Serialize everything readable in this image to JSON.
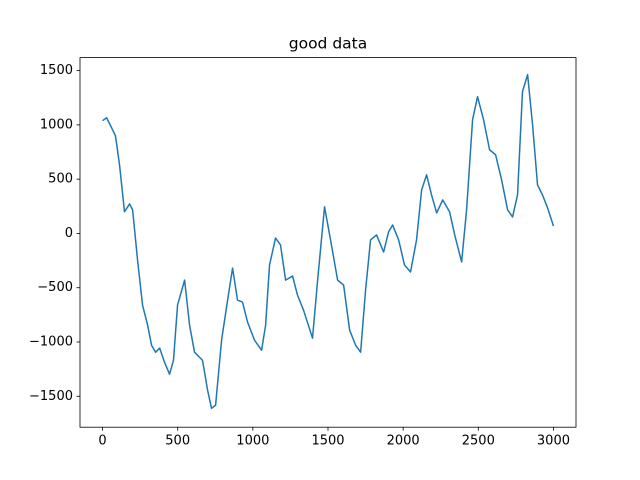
{
  "chart_data": {
    "type": "line",
    "title": "good data",
    "x": [
      0,
      27,
      60,
      86,
      113,
      146,
      180,
      200,
      233,
      266,
      300,
      326,
      353,
      380,
      412,
      446,
      472,
      499,
      546,
      579,
      612,
      665,
      699,
      725,
      752,
      792,
      832,
      865,
      898,
      931,
      965,
      1011,
      1058,
      1085,
      1111,
      1151,
      1184,
      1218,
      1264,
      1297,
      1337,
      1397,
      1431,
      1477,
      1517,
      1564,
      1604,
      1644,
      1684,
      1717,
      1750,
      1783,
      1823,
      1870,
      1903,
      1930,
      1970,
      2009,
      2049,
      2089,
      2123,
      2156,
      2189,
      2223,
      2263,
      2309,
      2343,
      2389,
      2422,
      2462,
      2495,
      2535,
      2575,
      2615,
      2655,
      2695,
      2728,
      2761,
      2794,
      2828,
      2861,
      2894,
      2927,
      2961,
      3000
    ],
    "series": [
      {
        "color": "#1f77b4",
        "values": [
          1039,
          1066,
          974,
          900,
          632,
          200,
          272,
          217,
          -245,
          -660,
          -845,
          -1030,
          -1094,
          -1057,
          -1186,
          -1297,
          -1168,
          -660,
          -430,
          -845,
          -1094,
          -1168,
          -1445,
          -1611,
          -1583,
          -983,
          -614,
          -319,
          -614,
          -632,
          -817,
          -983,
          -1076,
          -845,
          -291,
          -42,
          -106,
          -430,
          -392,
          -568,
          -706,
          -965,
          -430,
          245,
          -60,
          -430,
          -476,
          -891,
          -1030,
          -1094,
          -522,
          -60,
          -14,
          -171,
          14,
          78,
          -60,
          -291,
          -355,
          -60,
          402,
          540,
          355,
          189,
          309,
          199,
          -14,
          -263,
          217,
          1048,
          1260,
          1048,
          771,
          725,
          494,
          217,
          152,
          355,
          1307,
          1463,
          1002,
          448,
          355,
          235,
          69
        ]
      }
    ],
    "xlim": [
      -150,
      3150
    ],
    "ylim": [
      -1785,
      1620
    ],
    "xticks": [
      0,
      500,
      1000,
      1500,
      2000,
      2500,
      3000
    ],
    "yticks": [
      {
        "value": -1500,
        "label": "−1500"
      },
      {
        "value": -1000,
        "label": "−1000"
      },
      {
        "value": -500,
        "label": "−500"
      },
      0,
      500,
      1000,
      1500
    ]
  }
}
